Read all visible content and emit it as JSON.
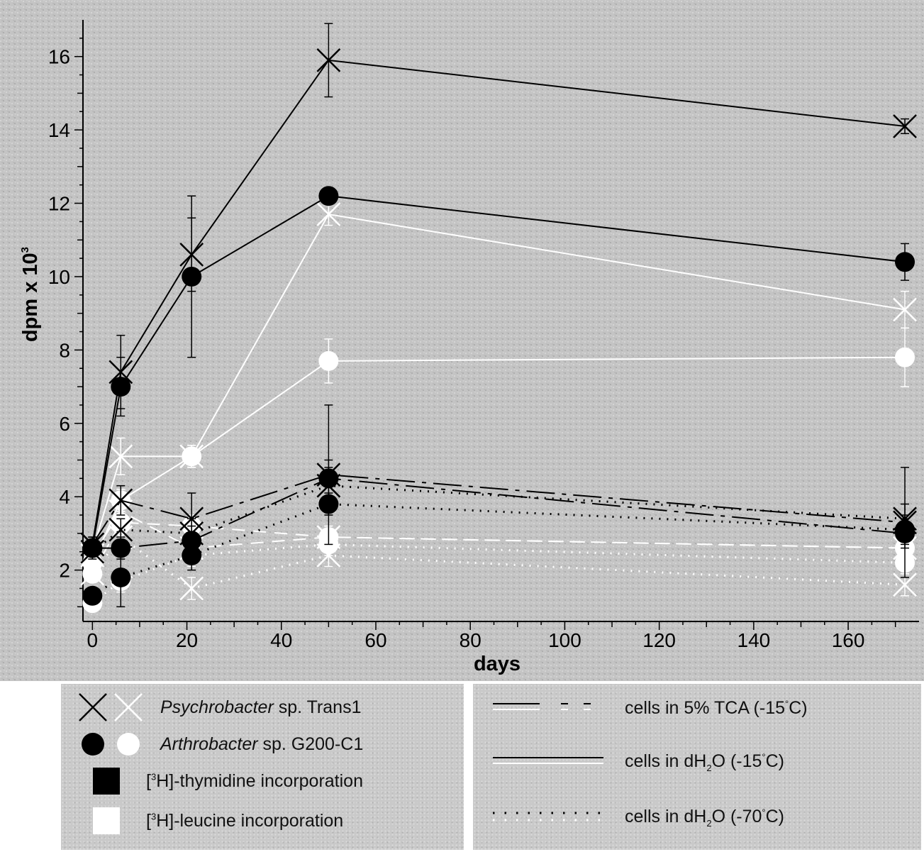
{
  "chart_data": {
    "type": "line",
    "xlabel": "days",
    "ylabel": "dpm x 10³",
    "ylabel_parts": {
      "base": "dpm x 10",
      "exp": "3"
    },
    "xlim": [
      -2,
      175
    ],
    "ylim": [
      0.6,
      17
    ],
    "xticks": [
      0,
      20,
      40,
      60,
      80,
      100,
      120,
      140,
      160
    ],
    "yticks": [
      2,
      4,
      6,
      8,
      10,
      12,
      14,
      16
    ],
    "x": [
      0,
      6,
      21,
      50,
      172
    ],
    "series": [
      {
        "name": "Psychrobacter sp. Trans1, [3H]-thymidine, cells in dH2O (-15°C)",
        "marker": "x",
        "color": "#000000",
        "style": "solid",
        "values": [
          2.7,
          7.4,
          10.6,
          15.9,
          14.1
        ],
        "err": [
          0.2,
          1.0,
          1.0,
          1.0,
          0.2
        ]
      },
      {
        "name": "Arthrobacter sp. G200-C1, [3H]-thymidine, cells in dH2O (-15°C)",
        "marker": "circle",
        "color": "#000000",
        "style": "solid",
        "values": [
          2.6,
          7.0,
          10.0,
          12.2,
          10.4
        ],
        "err": [
          0.2,
          0.8,
          2.2,
          0.1,
          0.5
        ]
      },
      {
        "name": "Psychrobacter sp. Trans1, [3H]-leucine, cells in dH2O (-15°C)",
        "marker": "x",
        "color": "#ffffff",
        "style": "solid",
        "values": [
          2.5,
          5.1,
          5.1,
          11.7,
          9.1
        ],
        "err": [
          0.2,
          0.5,
          0.3,
          0.3,
          0.5
        ]
      },
      {
        "name": "Arthrobacter sp. G200-C1, [3H]-leucine, cells in dH2O (-15°C)",
        "marker": "circle",
        "color": "#ffffff",
        "style": "solid",
        "values": [
          2.2,
          3.9,
          5.1,
          7.7,
          7.8
        ],
        "err": [
          0.2,
          0.3,
          0.3,
          0.6,
          0.8
        ]
      },
      {
        "name": "Psychrobacter sp. Trans1, [3H]-thymidine, cells in 5% TCA (-15°C)",
        "marker": "x",
        "color": "#000000",
        "style": "dashdot",
        "values": [
          2.7,
          3.9,
          3.4,
          4.6,
          3.3
        ],
        "err": [
          0.2,
          0.4,
          0.7,
          1.9,
          1.5
        ]
      },
      {
        "name": "Arthrobacter sp. G200-C1, [3H]-thymidine, cells in 5% TCA (-15°C)",
        "marker": "circle",
        "color": "#000000",
        "style": "dashdot",
        "values": [
          2.6,
          2.6,
          2.8,
          4.5,
          3.0
        ],
        "err": [
          0.2,
          0.3,
          0.4,
          0.5,
          0.4
        ]
      },
      {
        "name": "Psychrobacter sp. Trans1, [3H]-thymidine, cells in dH2O (-70°C)",
        "marker": "x",
        "color": "#000000",
        "style": "dotted",
        "values": [
          2.5,
          3.1,
          3.0,
          4.3,
          3.4
        ],
        "err": [
          0.2,
          0.3,
          0.4,
          0.5,
          0.4
        ]
      },
      {
        "name": "Arthrobacter sp. G200-C1, [3H]-thymidine, cells in dH2O (-70°C)",
        "marker": "circle",
        "color": "#000000",
        "style": "dotted",
        "values": [
          1.3,
          1.8,
          2.4,
          3.8,
          3.1
        ],
        "err": [
          0.2,
          0.8,
          0.4,
          0.3,
          0.4
        ]
      },
      {
        "name": "Psychrobacter sp. Trans1, [3H]-leucine, cells in 5% TCA (-15°C)",
        "marker": "x",
        "color": "#ffffff",
        "style": "dashed",
        "values": [
          2.4,
          3.6,
          2.6,
          2.9,
          2.6
        ],
        "err": [
          0.2,
          0.3,
          0.3,
          0.3,
          0.3
        ]
      },
      {
        "name": "Arthrobacter sp. G200-C1, [3H]-leucine, cells in 5% TCA (-15°C)",
        "marker": "circle",
        "color": "#ffffff",
        "style": "dashed",
        "values": [
          1.9,
          3.3,
          3.2,
          2.9,
          2.6
        ],
        "err": [
          0.2,
          0.3,
          0.3,
          0.3,
          0.3
        ]
      },
      {
        "name": "Psychrobacter sp. Trans1, [3H]-leucine, cells in dH2O (-70°C)",
        "marker": "x",
        "color": "#ffffff",
        "style": "dotted",
        "values": [
          1.9,
          2.9,
          1.5,
          2.4,
          1.6
        ],
        "err": [
          0.2,
          0.3,
          0.3,
          0.3,
          0.3
        ]
      },
      {
        "name": "Arthrobacter sp. G200-C1, [3H]-leucine, cells in dH2O (-70°C)",
        "marker": "circle",
        "color": "#ffffff",
        "style": "dotted",
        "values": [
          1.1,
          1.7,
          2.4,
          2.7,
          2.2
        ],
        "err": [
          0.2,
          0.3,
          0.3,
          0.3,
          0.3
        ]
      }
    ],
    "legend": {
      "organisms": [
        {
          "italic": "Psychrobacter",
          "rest": " sp. Trans1",
          "marker": "x"
        },
        {
          "italic": "Arthrobacter",
          "rest": " sp. G200-C1",
          "marker": "circle"
        }
      ],
      "labels": [
        {
          "pre": "[",
          "sup": "3",
          "post": "H]-thymidine incorporation",
          "color": "#000000"
        },
        {
          "pre": "[",
          "sup": "3",
          "post": "H]-leucine incorporation",
          "color": "#ffffff"
        }
      ],
      "conditions": [
        {
          "pre": "cells in 5% TCA (-15",
          "deg": "°",
          "post": "C)",
          "style": "dashdot"
        },
        {
          "pre": "cells in dH",
          "sub": "2",
          "mid": "O (-15",
          "deg": "°",
          "post": "C)",
          "style": "solid"
        },
        {
          "pre": "cells in dH",
          "sub": "2",
          "mid": "O (-70",
          "deg": "°",
          "post": "C)",
          "style": "dotted"
        }
      ]
    }
  }
}
